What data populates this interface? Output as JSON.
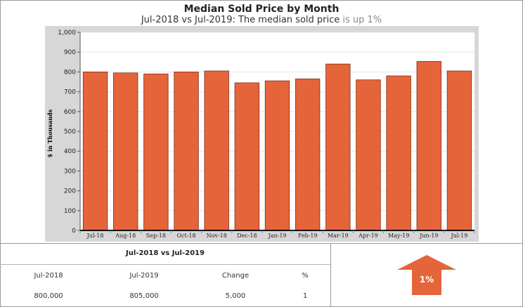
{
  "title": "Median Sold Price by Month",
  "subtitle_main": "Jul-2018 vs Jul-2019: The median sold price",
  "subtitle_trend": "is up 1%",
  "chart_data": {
    "type": "bar",
    "ylabel": "$ in Thousands",
    "categories": [
      "Jul-18",
      "Aug-18",
      "Sep-18",
      "Oct-18",
      "Nov-18",
      "Dec-18",
      "Jan-19",
      "Feb-19",
      "Mar-19",
      "Apr-19",
      "May-19",
      "Jun-19",
      "Jul-19"
    ],
    "values": [
      800,
      795,
      790,
      800,
      805,
      745,
      755,
      765,
      840,
      760,
      780,
      853,
      805
    ],
    "ylim": [
      0,
      1000
    ],
    "yticks": [
      0,
      100,
      200,
      300,
      400,
      500,
      600,
      700,
      800,
      900,
      1000
    ],
    "ytick_labels": [
      "0",
      "100",
      "200",
      "300",
      "400",
      "500",
      "600",
      "700",
      "800",
      "900",
      "1,000"
    ],
    "bar_color": "#e6643a",
    "plot_bg": "#ffffff",
    "frame_bg": "#d7d7d7",
    "grid": true
  },
  "comparison": {
    "title": "Jul-2018 vs Jul-2019",
    "headers": [
      "Jul-2018",
      "Jul-2019",
      "Change",
      "%"
    ],
    "values": [
      "800,000",
      "805,000",
      "5,000",
      "1"
    ]
  },
  "indicator": {
    "label": "1%",
    "direction": "up",
    "color": "#e6643a"
  }
}
